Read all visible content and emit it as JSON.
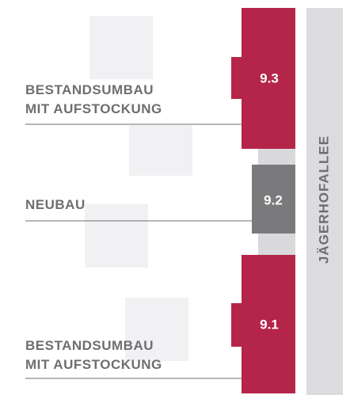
{
  "buildings": [
    {
      "id": "9.3",
      "label": [
        "BESTANDSUMBAU",
        "MIT AUFSTOCKUNG"
      ]
    },
    {
      "id": "9.2",
      "label": [
        "NEUBAU"
      ]
    },
    {
      "id": "9.1",
      "label": [
        "BESTANDSUMBAU",
        "MIT AUFSTOCKUNG"
      ]
    }
  ],
  "street": "JÄGERHOFALLEE"
}
